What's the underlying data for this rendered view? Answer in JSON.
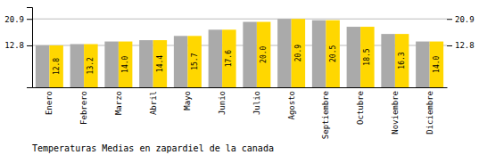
{
  "chart_data": {
    "type": "bar",
    "title": "Temperaturas Medias en zapardiel de la canada",
    "categories": [
      "Enero",
      "Febrero",
      "Marzo",
      "Abril",
      "Mayo",
      "Junio",
      "Julio",
      "Agosto",
      "Septiembre",
      "Octubre",
      "Noviembre",
      "Diciembre"
    ],
    "series": [
      {
        "color": "#AAAAAA",
        "values": [
          12.8,
          13.2,
          14.0,
          14.4,
          15.7,
          17.6,
          20.0,
          20.9,
          20.5,
          18.5,
          16.3,
          14.0
        ]
      },
      {
        "color": "#FFD700",
        "values": [
          12.8,
          13.2,
          14.0,
          14.4,
          15.7,
          17.6,
          20.0,
          20.9,
          20.5,
          18.5,
          16.3,
          14.0
        ],
        "value_labels": [
          "12.8",
          "13.2",
          "14.0",
          "14.4",
          "15.7",
          "17.6",
          "20.0",
          "20.9",
          "20.5",
          "18.5",
          "16.3",
          "14.0"
        ]
      }
    ],
    "ylim": [
      0,
      24.5
    ],
    "yticks": [
      12.8,
      20.9
    ],
    "grid": true,
    "data_labels": true
  }
}
